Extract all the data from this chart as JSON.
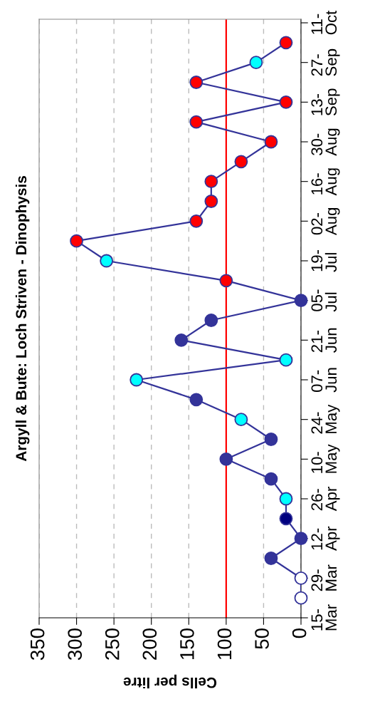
{
  "chart_data": {
    "type": "line",
    "orientation": "horizontal",
    "title": "Argyll & Bute: Loch Striven - Dinophysis",
    "xlabel": "Cells per litre",
    "categories": [
      "11-\nOct",
      null,
      "27-\nSep",
      null,
      "13-\nSep",
      null,
      "30-\nAug",
      null,
      "16-\nAug",
      null,
      "02-\nAug",
      null,
      "19-\nJul",
      null,
      "05-\nJul",
      null,
      "21-\nJun",
      null,
      "07-\nJun",
      null,
      "24-\nMay",
      null,
      "10-\nMay",
      null,
      "26-\nApr",
      null,
      "12-\nApr",
      null,
      "29-\nMar",
      null,
      "15-\nMar"
    ],
    "series": [
      {
        "color": "#333399",
        "values": [
          null,
          20,
          60,
          140,
          20,
          140,
          40,
          80,
          120,
          120,
          140,
          300,
          260,
          100,
          0,
          120,
          160,
          20,
          220,
          140,
          80,
          40,
          100,
          40,
          20,
          20,
          0,
          40,
          0,
          0,
          null
        ],
        "colors": [
          null,
          "#ff0000",
          "#00ffff",
          "#ff0000",
          "#ff0000",
          "#ff0000",
          "#ff0000",
          "#ff0000",
          "#ff0000",
          "#ff0000",
          "#ff0000",
          "#ff0000",
          "#00ffff",
          "#ff0000",
          "#333399",
          "#333399",
          "#333399",
          "#00ffff",
          "#00ffff",
          "#333399",
          "#00ffff",
          "#333399",
          "#333399",
          "#333399",
          "#00ffff",
          "#000080",
          "#333399",
          "#333399",
          "#ffffff",
          "#ffffff",
          null
        ]
      }
    ],
    "xlim": [
      350,
      0
    ],
    "xticks": [
      350,
      300,
      250,
      200,
      150,
      100,
      50,
      0
    ],
    "ref_lines": [
      {
        "axis": "x",
        "value": 100,
        "color": "#ff0000"
      }
    ],
    "grid": "x",
    "marker": "circle",
    "line_style": "solid"
  }
}
